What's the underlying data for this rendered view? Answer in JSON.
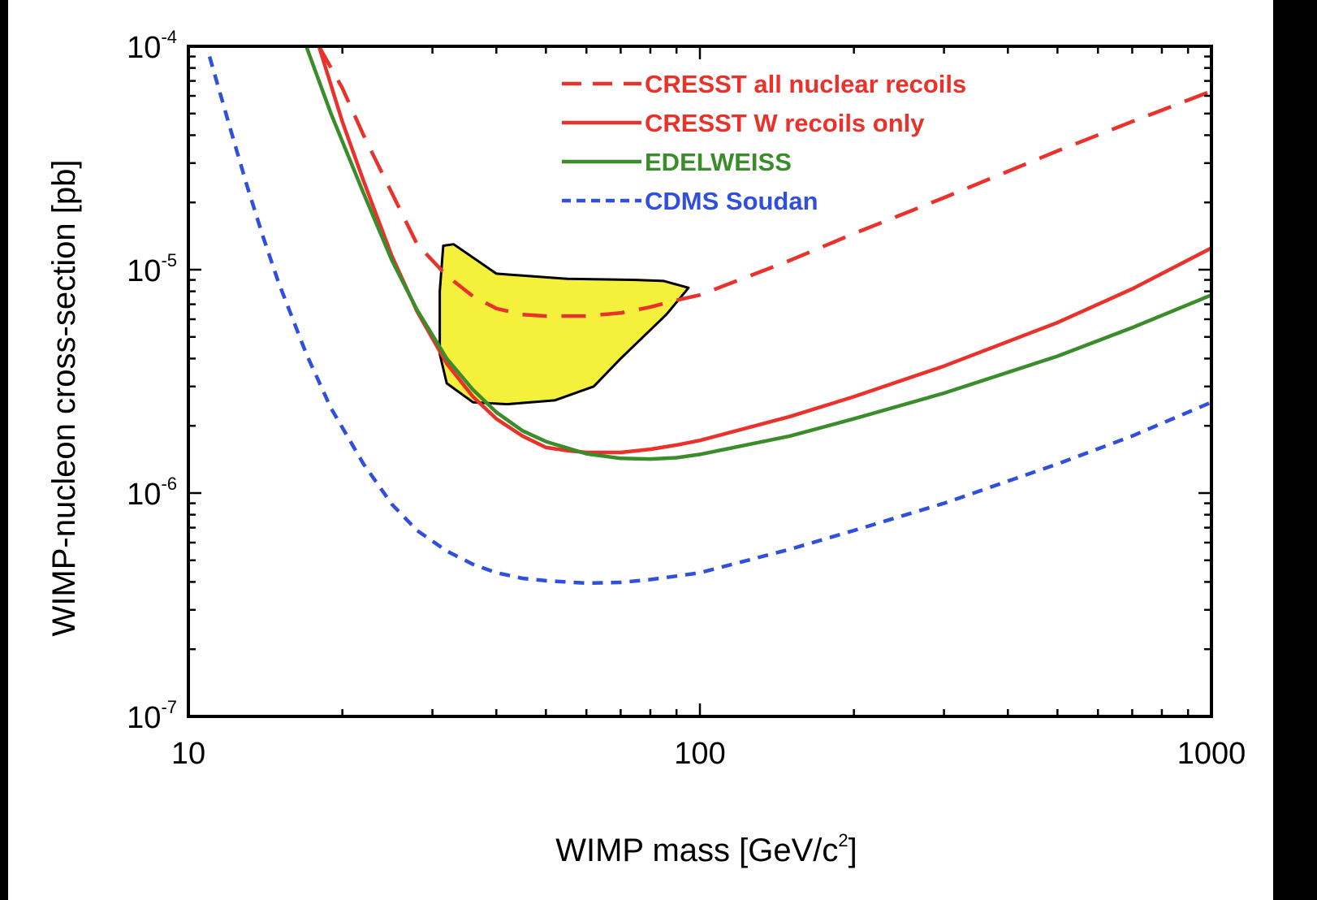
{
  "chart_data": {
    "type": "line",
    "title": "",
    "xlabel": "WIMP mass [GeV/c",
    "xlabel_sup": "2",
    "xlabel_end": "]",
    "ylabel": "WIMP-nucleon cross-section [pb]",
    "xscale": "log",
    "yscale": "log",
    "xlim": [
      10,
      1000
    ],
    "ylim": [
      1e-07,
      0.0001
    ],
    "grid": false,
    "legend_position": "top-right",
    "x_tick_labels": [
      {
        "value": 10,
        "label": "10"
      },
      {
        "value": 100,
        "label": "100"
      },
      {
        "value": 1000,
        "label": "1000"
      }
    ],
    "y_tick_labels": [
      {
        "value": 0.0001,
        "base": "10",
        "exp": "-4"
      },
      {
        "value": 1e-05,
        "base": "10",
        "exp": "-5"
      },
      {
        "value": 1e-06,
        "base": "10",
        "exp": "-6"
      },
      {
        "value": 1e-07,
        "base": "10",
        "exp": "-7"
      }
    ],
    "series": [
      {
        "name": "CRESST all nuclear recoils",
        "color": "#e8322b",
        "style": "long-dash",
        "x": [
          18,
          20,
          22,
          25,
          28,
          32,
          36,
          40,
          45,
          50,
          60,
          70,
          80,
          90,
          100,
          150,
          200,
          300,
          500,
          700,
          1000
        ],
        "y": [
          0.0001,
          6.5e-05,
          4e-05,
          2.2e-05,
          1.3e-05,
          9.4e-06,
          7.6e-06,
          6.7e-06,
          6.3e-06,
          6.2e-06,
          6.2e-06,
          6.4e-06,
          6.8e-06,
          7.3e-06,
          7.7e-06,
          1.1e-05,
          1.45e-05,
          2.1e-05,
          3.4e-05,
          4.6e-05,
          6.3e-05
        ]
      },
      {
        "name": "CRESST W recoils only",
        "color": "#e8322b",
        "style": "solid",
        "x": [
          18,
          20,
          22,
          25,
          28,
          32,
          36,
          40,
          45,
          50,
          55,
          60,
          70,
          80,
          90,
          100,
          150,
          200,
          300,
          500,
          700,
          1000
        ],
        "y": [
          0.0001,
          4.6e-05,
          2.5e-05,
          1.15e-05,
          6.5e-06,
          3.8e-06,
          2.7e-06,
          2.15e-06,
          1.8e-06,
          1.6e-06,
          1.55e-06,
          1.52e-06,
          1.52e-06,
          1.57e-06,
          1.64e-06,
          1.72e-06,
          2.2e-06,
          2.7e-06,
          3.7e-06,
          5.8e-06,
          8.2e-06,
          1.25e-05
        ]
      },
      {
        "name": "EDELWEISS",
        "color": "#3b8c2a",
        "style": "solid",
        "x": [
          17,
          19,
          22,
          25,
          28,
          32,
          36,
          40,
          45,
          50,
          60,
          70,
          80,
          90,
          100,
          150,
          200,
          300,
          500,
          700,
          1000
        ],
        "y": [
          0.0001,
          5e-05,
          2.2e-05,
          1.1e-05,
          6.6e-06,
          4e-06,
          2.9e-06,
          2.3e-06,
          1.9e-06,
          1.7e-06,
          1.5e-06,
          1.43e-06,
          1.42e-06,
          1.44e-06,
          1.49e-06,
          1.8e-06,
          2.15e-06,
          2.8e-06,
          4.1e-06,
          5.5e-06,
          7.7e-06
        ]
      },
      {
        "name": "CDMS Soudan",
        "color": "#2f4fdc",
        "style": "short-dash",
        "x": [
          11,
          12,
          13,
          14,
          15,
          17,
          19,
          22,
          25,
          28,
          32,
          36,
          40,
          45,
          50,
          60,
          70,
          80,
          90,
          100,
          150,
          200,
          300,
          500,
          700,
          1000
        ],
        "y": [
          9e-05,
          4.5e-05,
          2.4e-05,
          1.4e-05,
          8.8e-06,
          4.2e-06,
          2.4e-06,
          1.35e-06,
          8.9e-07,
          6.8e-07,
          5.5e-07,
          4.8e-07,
          4.4e-07,
          4.15e-07,
          4.05e-07,
          3.95e-07,
          3.98e-07,
          4.1e-07,
          4.25e-07,
          4.4e-07,
          5.6e-07,
          6.8e-07,
          9e-07,
          1.35e-06,
          1.8e-06,
          2.55e-06
        ]
      }
    ],
    "regions": [
      {
        "fill": "#f5f03c",
        "stroke": "#000000",
        "points": [
          [
            31.5,
            1.28e-05
          ],
          [
            33,
            1.3e-05
          ],
          [
            40,
            9.6e-06
          ],
          [
            55,
            9.1e-06
          ],
          [
            75,
            9e-06
          ],
          [
            85,
            8.9e-06
          ],
          [
            95,
            8.3e-06
          ],
          [
            86,
            6.3e-06
          ],
          [
            70,
            4e-06
          ],
          [
            62,
            3e-06
          ],
          [
            52,
            2.6e-06
          ],
          [
            42,
            2.5e-06
          ],
          [
            36,
            2.55e-06
          ],
          [
            32,
            3.1e-06
          ],
          [
            31,
            4.2e-06
          ],
          [
            31,
            8e-06
          ]
        ]
      }
    ]
  }
}
